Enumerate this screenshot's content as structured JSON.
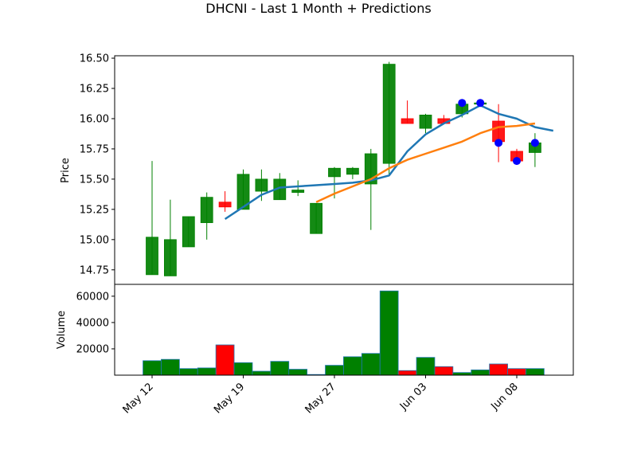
{
  "chart_data": {
    "type": "candlestick",
    "title": "DHCNI - Last 1 Month + Predictions",
    "price_panel": {
      "ylabel": "Price",
      "ylim": [
        14.63,
        16.52
      ],
      "yticks": [
        14.75,
        15.0,
        15.25,
        15.5,
        15.75,
        16.0,
        16.25,
        16.5
      ],
      "ytick_labels": [
        "14.75",
        "15.00",
        "15.25",
        "15.50",
        "15.75",
        "16.00",
        "16.25",
        "16.50"
      ]
    },
    "volume_panel": {
      "ylabel": "Volume",
      "ylim": [
        0,
        69000
      ],
      "yticks": [
        20000,
        40000,
        60000
      ],
      "ytick_labels": [
        "20000",
        "40000",
        "60000"
      ]
    },
    "xticks": [
      {
        "label": "May 12",
        "index": 0
      },
      {
        "label": "May 19",
        "index": 5
      },
      {
        "label": "May 27",
        "index": 10
      },
      {
        "label": "Jun 03",
        "index": 15
      },
      {
        "label": "Jun 08",
        "index": 20
      }
    ],
    "candles": [
      {
        "open": 14.71,
        "high": 15.65,
        "low": 14.71,
        "close": 15.02,
        "volume": 11000
      },
      {
        "open": 14.7,
        "high": 15.33,
        "low": 14.7,
        "close": 15.0,
        "volume": 12000
      },
      {
        "open": 14.94,
        "high": 15.19,
        "low": 14.94,
        "close": 15.19,
        "volume": 5000
      },
      {
        "open": 15.14,
        "high": 15.39,
        "low": 15.0,
        "close": 15.35,
        "volume": 5500
      },
      {
        "open": 15.31,
        "high": 15.4,
        "low": 15.23,
        "close": 15.27,
        "volume": 23000
      },
      {
        "open": 15.25,
        "high": 15.58,
        "low": 15.25,
        "close": 15.54,
        "volume": 9500
      },
      {
        "open": 15.4,
        "high": 15.58,
        "low": 15.32,
        "close": 15.5,
        "volume": 3000
      },
      {
        "open": 15.33,
        "high": 15.55,
        "low": 15.33,
        "close": 15.5,
        "volume": 10500
      },
      {
        "open": 15.39,
        "high": 15.49,
        "low": 15.36,
        "close": 15.41,
        "volume": 4500
      },
      {
        "open": 15.05,
        "high": 15.3,
        "low": 15.05,
        "close": 15.3,
        "volume": 500
      },
      {
        "open": 15.52,
        "high": 15.6,
        "low": 15.34,
        "close": 15.59,
        "volume": 7500
      },
      {
        "open": 15.54,
        "high": 15.6,
        "low": 15.5,
        "close": 15.59,
        "volume": 14000
      },
      {
        "open": 15.46,
        "high": 15.75,
        "low": 15.08,
        "close": 15.71,
        "volume": 16500
      },
      {
        "open": 15.63,
        "high": 16.47,
        "low": 15.53,
        "close": 16.45,
        "volume": 64000
      },
      {
        "open": 16.0,
        "high": 16.15,
        "low": 15.96,
        "close": 15.96,
        "volume": 3500
      },
      {
        "open": 15.92,
        "high": 16.04,
        "low": 15.88,
        "close": 16.03,
        "volume": 13500
      },
      {
        "open": 16.0,
        "high": 16.03,
        "low": 15.96,
        "close": 15.96,
        "volume": 6500
      },
      {
        "open": 16.04,
        "high": 16.16,
        "low": 16.01,
        "close": 16.12,
        "volume": 2000
      },
      {
        "open": 16.13,
        "high": 16.14,
        "low": 16.12,
        "close": 16.13,
        "volume": 4000
      },
      {
        "open": 15.98,
        "high": 16.12,
        "low": 15.64,
        "close": 15.81,
        "volume": 8500
      },
      {
        "open": 15.73,
        "high": 15.75,
        "low": 15.64,
        "close": 15.65,
        "volume": 5000
      },
      {
        "open": 15.72,
        "high": 15.88,
        "low": 15.6,
        "close": 15.8,
        "volume": 5000
      }
    ],
    "series": [
      {
        "color": "#1f77b4",
        "start_index": 4,
        "values": [
          15.17,
          15.27,
          15.37,
          15.43,
          15.44,
          15.45,
          15.46,
          15.47,
          15.49,
          15.53,
          15.73,
          15.87,
          15.96,
          16.03,
          16.11,
          16.04,
          16.0,
          15.93,
          15.9
        ]
      },
      {
        "color": "#ff7f0e",
        "start_index": 9,
        "values": [
          15.31,
          15.38,
          15.44,
          15.5,
          15.59,
          15.66,
          15.71,
          15.76,
          15.81,
          15.88,
          15.93,
          15.94,
          15.96
        ]
      }
    ],
    "prediction_markers": {
      "color": "#0000ff",
      "points": [
        {
          "index": 17,
          "value": 16.13
        },
        {
          "index": 18,
          "value": 16.13
        },
        {
          "index": 19,
          "value": 15.8
        },
        {
          "index": 20,
          "value": 15.65
        },
        {
          "index": 21,
          "value": 15.8
        }
      ]
    },
    "colors": {
      "up": "#008000",
      "down": "#ff0000",
      "volume_edge": "#1f77b4"
    },
    "grid": false
  }
}
